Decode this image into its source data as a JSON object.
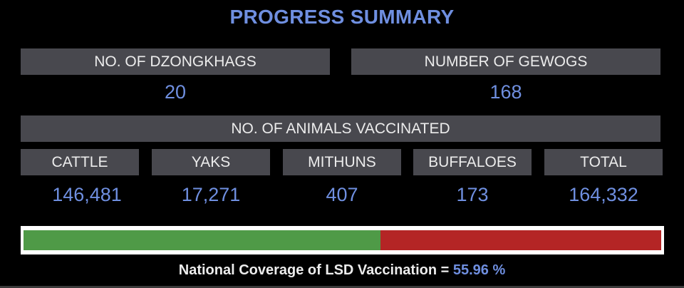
{
  "title": "PROGRESS SUMMARY",
  "summary": {
    "dzongkhags": {
      "label": "NO. OF DZONGKHAGS",
      "value": "20"
    },
    "gewogs": {
      "label": "NUMBER OF GEWOGS",
      "value": "168"
    }
  },
  "animals": {
    "header": "NO. OF ANIMALS VACCINATED",
    "items": [
      {
        "label": "CATTLE",
        "value": "146,481"
      },
      {
        "label": "YAKS",
        "value": "17,271"
      },
      {
        "label": "MITHUNS",
        "value": "407"
      },
      {
        "label": "BUFFALOES",
        "value": "173"
      },
      {
        "label": "TOTAL",
        "value": "164,332"
      }
    ]
  },
  "coverage": {
    "label": "National Coverage of LSD Vaccination =",
    "value_text": "55.96 %",
    "fraction": 0.5596,
    "colors": {
      "covered": "#4f9a47",
      "remaining": "#b42525"
    }
  }
}
